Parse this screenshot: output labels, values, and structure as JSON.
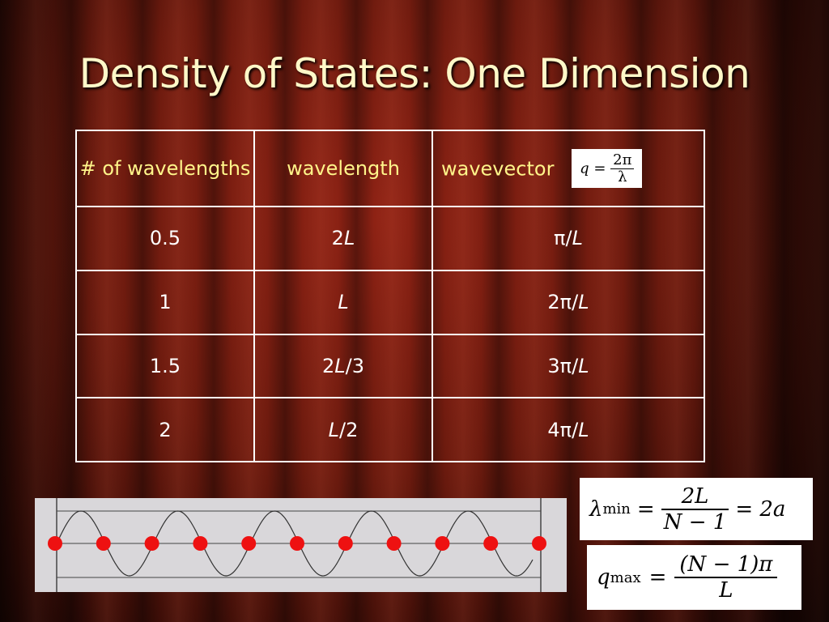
{
  "slide": {
    "title": "Density of States: One Dimension"
  },
  "table": {
    "headers": {
      "count": "# of wavelengths",
      "wavelength": "wavelength",
      "wavevector": "wavevector"
    },
    "header_formula": {
      "lhs": "q =",
      "num": "2π",
      "den": "λ"
    },
    "rows": [
      {
        "count": "0.5",
        "wl_pre": "2",
        "wl_var": "L",
        "wl_post": "",
        "wv_pre": "π/",
        "wv_var": "L"
      },
      {
        "count": "1",
        "wl_pre": "",
        "wl_var": "L",
        "wl_post": "",
        "wv_pre": "2π/",
        "wv_var": "L"
      },
      {
        "count": "1.5",
        "wl_pre": "2",
        "wl_var": "L",
        "wl_post": "/3",
        "wv_pre": "3π/",
        "wv_var": "L"
      },
      {
        "count": "2",
        "wl_pre": "",
        "wl_var": "L",
        "wl_post": "/2",
        "wv_pre": "4π/",
        "wv_var": "L"
      }
    ]
  },
  "equations": {
    "lambda_min": {
      "symbol": "λ",
      "sub": "min",
      "eq1": "=",
      "num": "2L",
      "den": "N − 1",
      "rhs": "= 2a"
    },
    "q_max": {
      "symbol": "q",
      "sub": "max",
      "eq1": "=",
      "num": "(N − 1)π",
      "den": "L"
    }
  },
  "wave_figure": {
    "atom_count": 11,
    "atom_color": "#ee1111",
    "wave_color": "#333333",
    "line_color": "#444444",
    "panel_color": "#d9d7da"
  },
  "colors": {
    "title": "#fff8c8",
    "header_text": "#fff58a",
    "cell_text": "#ffffff",
    "background": "#6b1a0e"
  }
}
